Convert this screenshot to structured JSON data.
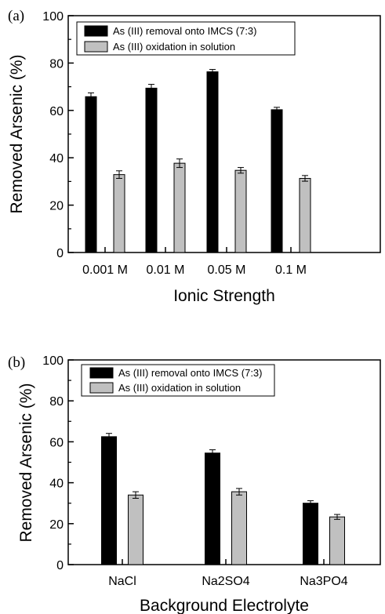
{
  "chart_data": [
    {
      "type": "bar",
      "panel_label": "(a)",
      "categories": [
        "0.001 M",
        "0.01 M",
        "0.05 M",
        "0.1 M"
      ],
      "series": [
        {
          "name": "As (III) removal onto IMCS (7:3)",
          "values": [
            65.8,
            69.4,
            76.3,
            60.3
          ],
          "errors": [
            1.6,
            1.6,
            1.0,
            1.0
          ],
          "color": "#000000"
        },
        {
          "name": "As (III) oxidation in solution",
          "values": [
            32.9,
            37.7,
            34.7,
            31.3
          ],
          "errors": [
            1.6,
            1.8,
            1.2,
            1.2
          ],
          "color": "#c0c0c0"
        }
      ],
      "xlabel": "Ionic Strength",
      "ylabel": "Removed Arsenic (%)",
      "ylim": [
        0,
        100
      ],
      "yticks": [
        0,
        20,
        40,
        60,
        80,
        100
      ],
      "legend_position": "top-left",
      "grid": false
    },
    {
      "type": "bar",
      "panel_label": "(b)",
      "categories": [
        "NaCl",
        "Na2SO4",
        "Na3PO4"
      ],
      "series": [
        {
          "name": "As (III) removal onto IMCS (7:3)",
          "values": [
            62.5,
            54.5,
            30.0
          ],
          "errors": [
            1.6,
            1.6,
            1.2
          ],
          "color": "#000000"
        },
        {
          "name": "As (III) oxidation in solution",
          "values": [
            34.0,
            35.6,
            23.3
          ],
          "errors": [
            1.6,
            1.6,
            1.2
          ],
          "color": "#c0c0c0"
        }
      ],
      "xlabel": "Background Electrolyte",
      "ylabel": "Removed Arsenic (%)",
      "ylim": [
        0,
        100
      ],
      "yticks": [
        0,
        20,
        40,
        60,
        80,
        100
      ],
      "legend_position": "top-left",
      "grid": false
    }
  ]
}
